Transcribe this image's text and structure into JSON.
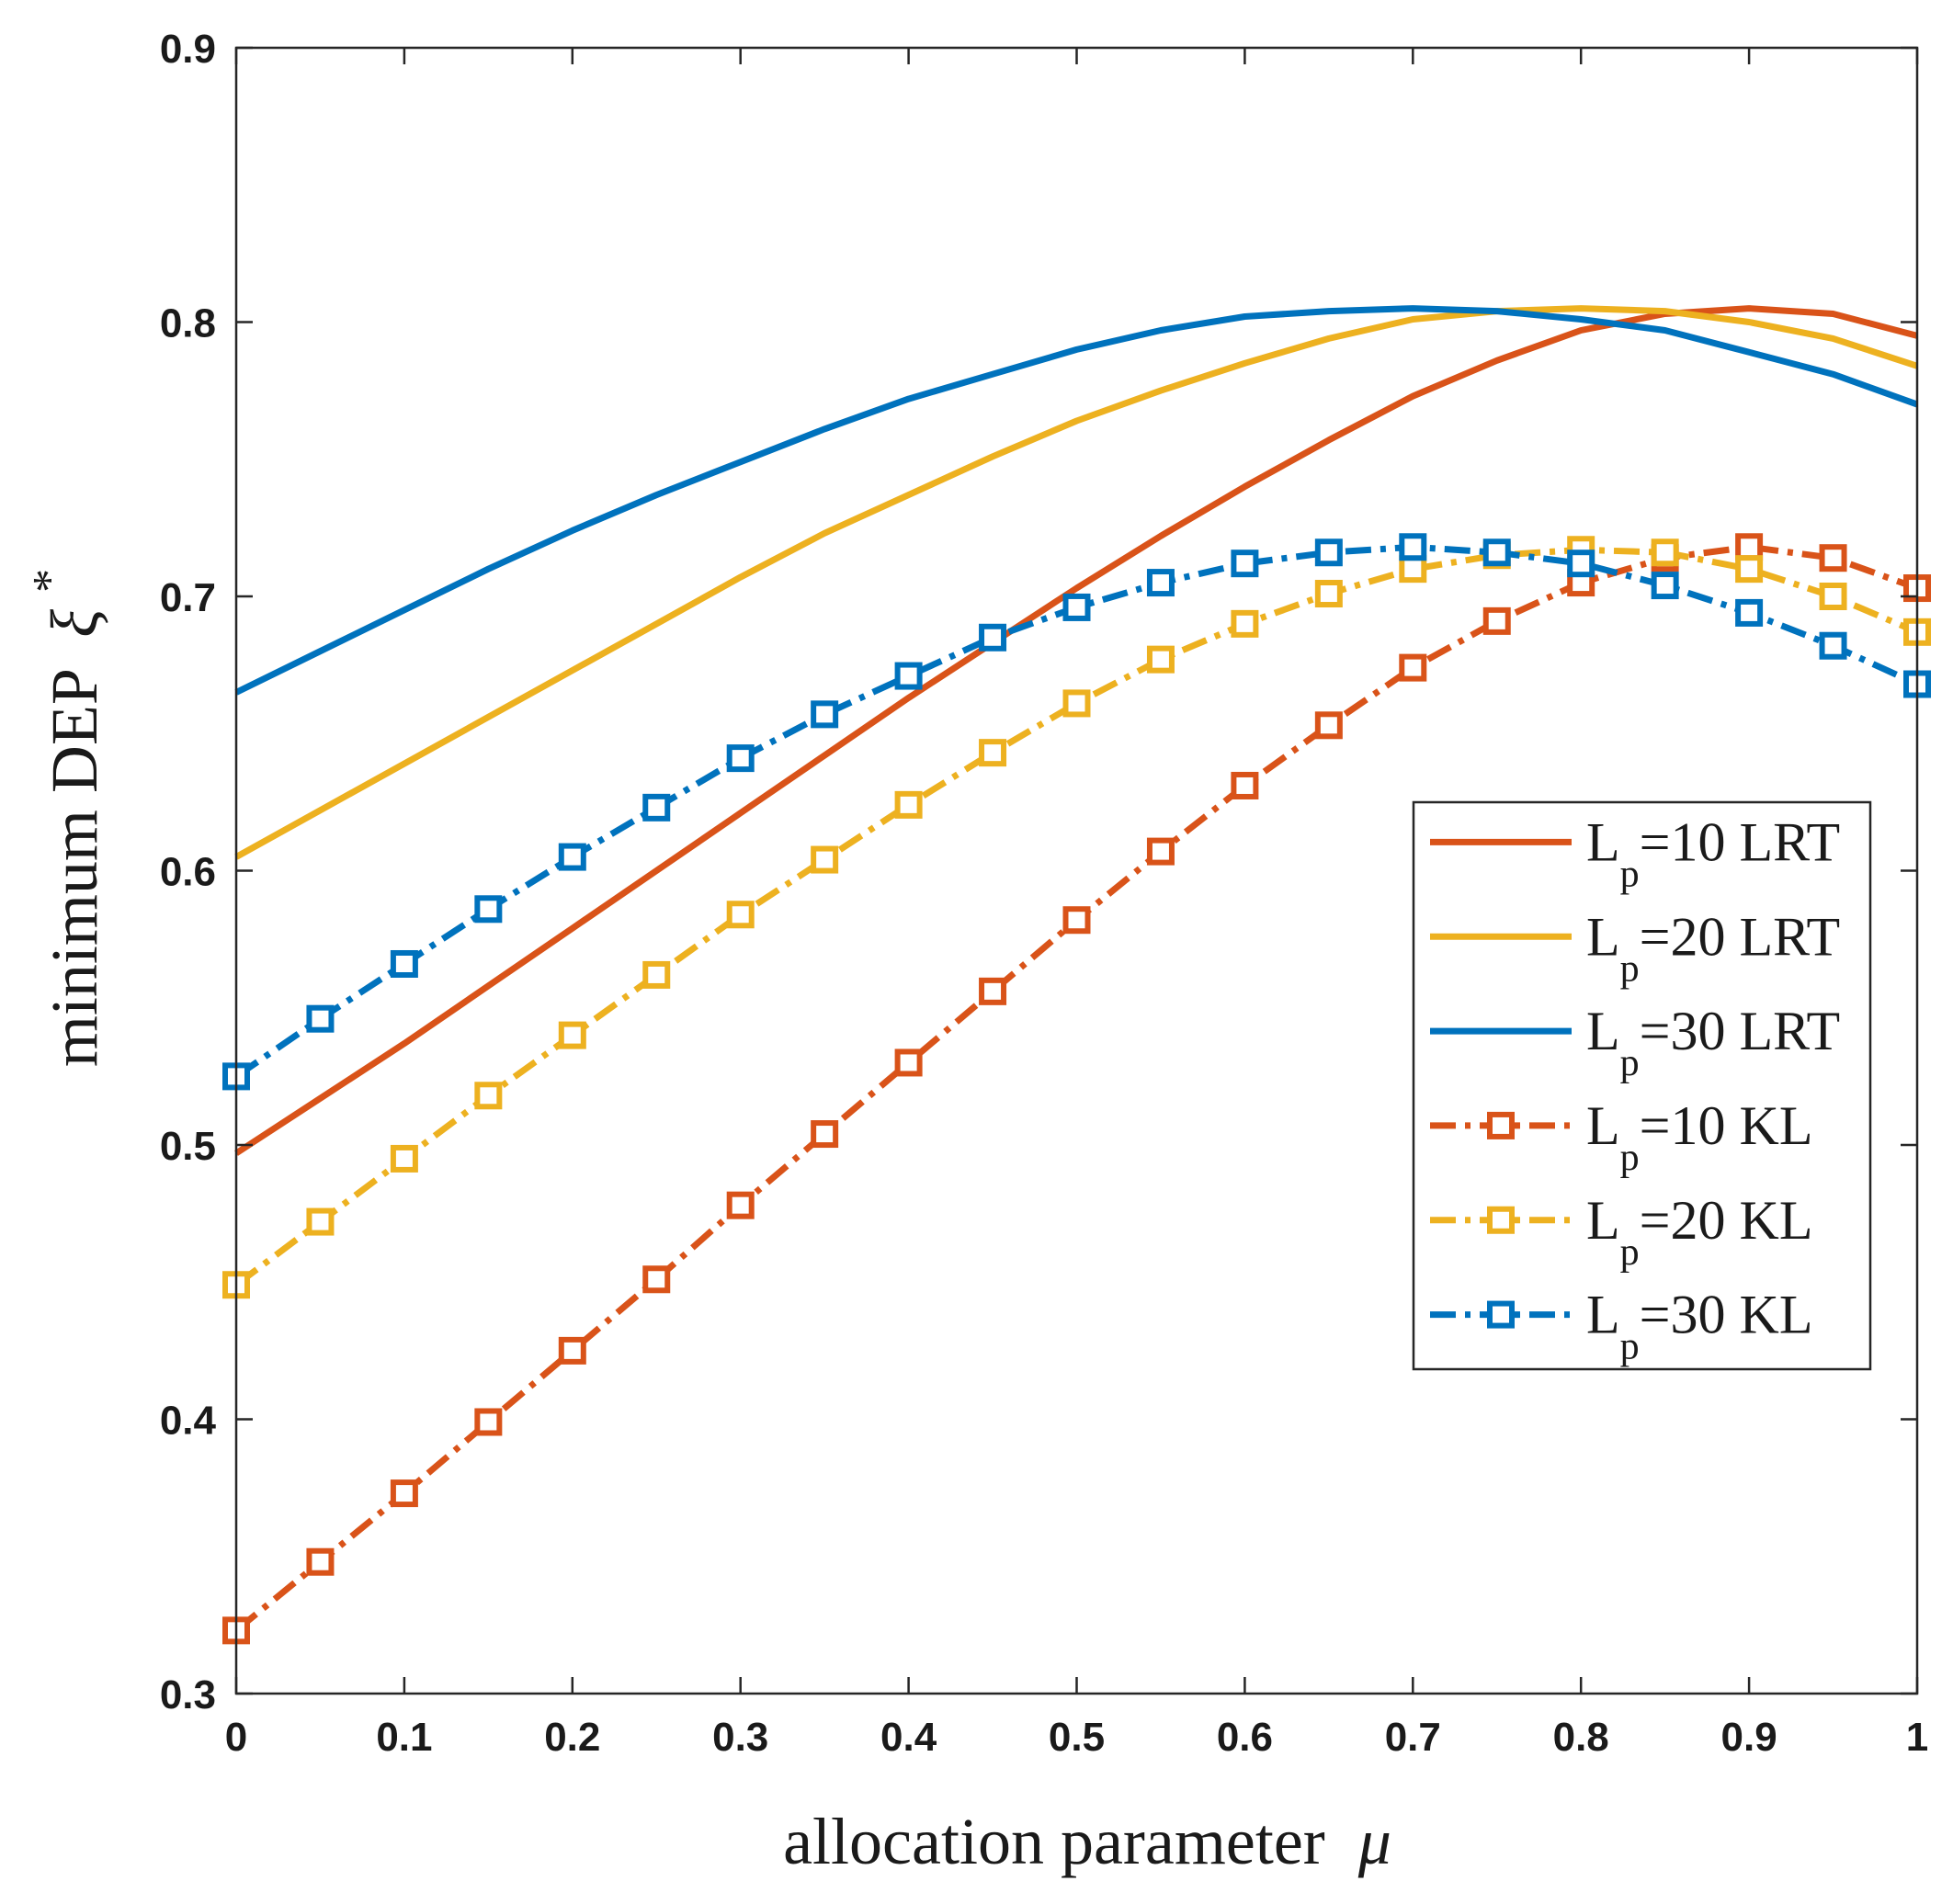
{
  "chart_data": {
    "type": "line",
    "xlabel": "allocation parameter",
    "xlabel_symbol": "μ",
    "ylabel": "minimum DEP",
    "ylabel_symbol": "ξ",
    "ylabel_superscript": "*",
    "xlim": [
      0,
      1
    ],
    "ylim": [
      0.3,
      0.9
    ],
    "xticks": [
      "0",
      "0.1",
      "0.2",
      "0.3",
      "0.4",
      "0.5",
      "0.6",
      "0.7",
      "0.8",
      "0.9",
      "1"
    ],
    "yticks": [
      "0.3",
      "0.4",
      "0.5",
      "0.6",
      "0.7",
      "0.8",
      "0.9"
    ],
    "grid": false,
    "legend_position": "right",
    "x": [
      0,
      0.05,
      0.1,
      0.15,
      0.2,
      0.25,
      0.3,
      0.35,
      0.4,
      0.45,
      0.5,
      0.55,
      0.6,
      0.65,
      0.7,
      0.75,
      0.8,
      0.85,
      0.9,
      0.95,
      1
    ],
    "series": [
      {
        "name": "L_p=10 LRT",
        "legend_main": "L",
        "legend_sub": "p",
        "legend_rest": "=10 LRT",
        "color": "#D95319",
        "style": "solid",
        "marker": "none",
        "values": [
          0.497,
          0.517,
          0.537,
          0.558,
          0.579,
          0.6,
          0.621,
          0.642,
          0.663,
          0.683,
          0.703,
          0.722,
          0.74,
          0.757,
          0.773,
          0.786,
          0.797,
          0.803,
          0.805,
          0.803,
          0.795
        ]
      },
      {
        "name": "L_p=20 LRT",
        "legend_main": "L",
        "legend_sub": "p",
        "legend_rest": "=20 LRT",
        "color": "#EDB120",
        "style": "solid",
        "marker": "none",
        "values": [
          0.605,
          0.622,
          0.639,
          0.656,
          0.673,
          0.69,
          0.707,
          0.723,
          0.737,
          0.751,
          0.764,
          0.775,
          0.785,
          0.794,
          0.801,
          0.804,
          0.805,
          0.804,
          0.8,
          0.794,
          0.784
        ]
      },
      {
        "name": "L_p=30 LRT",
        "legend_main": "L",
        "legend_sub": "p",
        "legend_rest": "=30 LRT",
        "color": "#0072BD",
        "style": "solid",
        "marker": "none",
        "values": [
          0.665,
          0.68,
          0.695,
          0.71,
          0.724,
          0.737,
          0.749,
          0.761,
          0.772,
          0.781,
          0.79,
          0.797,
          0.802,
          0.804,
          0.805,
          0.804,
          0.801,
          0.797,
          0.789,
          0.781,
          0.77
        ]
      },
      {
        "name": "L_p=10 KL",
        "legend_main": "L",
        "legend_sub": "p",
        "legend_rest": "=10 KL",
        "color": "#D95319",
        "style": "dashdot",
        "marker": "square",
        "values": [
          0.323,
          0.348,
          0.373,
          0.399,
          0.425,
          0.451,
          0.478,
          0.504,
          0.53,
          0.556,
          0.582,
          0.607,
          0.631,
          0.653,
          0.674,
          0.691,
          0.705,
          0.714,
          0.718,
          0.714,
          0.703
        ]
      },
      {
        "name": "L_p=20 KL",
        "legend_main": "L",
        "legend_sub": "p",
        "legend_rest": "=20 KL",
        "color": "#EDB120",
        "style": "dashdot",
        "marker": "square",
        "values": [
          0.449,
          0.472,
          0.495,
          0.518,
          0.54,
          0.562,
          0.584,
          0.604,
          0.624,
          0.643,
          0.661,
          0.677,
          0.69,
          0.701,
          0.71,
          0.715,
          0.717,
          0.716,
          0.71,
          0.7,
          0.687
        ]
      },
      {
        "name": "L_p=30 KL",
        "legend_main": "L",
        "legend_sub": "p",
        "legend_rest": "=30 KL",
        "color": "#0072BD",
        "style": "dashdot",
        "marker": "square",
        "values": [
          0.525,
          0.546,
          0.566,
          0.586,
          0.605,
          0.623,
          0.641,
          0.657,
          0.671,
          0.685,
          0.696,
          0.705,
          0.712,
          0.716,
          0.718,
          0.716,
          0.712,
          0.704,
          0.694,
          0.682,
          0.668
        ]
      }
    ]
  }
}
